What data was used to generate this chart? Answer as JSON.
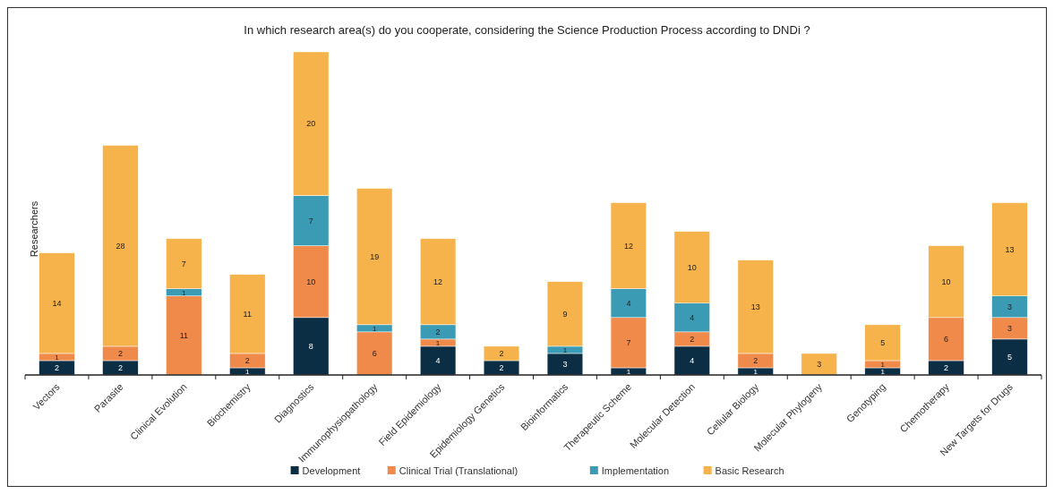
{
  "chart_data": {
    "type": "bar",
    "stacked": true,
    "title": "In which research area(s) do you cooperate, considering the Science Production Process according to DNDi ?",
    "ylabel": "Researchers",
    "categories": [
      "Vectors",
      "Parasite",
      "Clinical Evolution",
      "Biochemistry",
      "Diagnostics",
      "Immunophysiopathology",
      "Field Epidemiology",
      "Epidemiology Genetics",
      "Bioinformatics",
      "Therapeutic Scheme",
      "Molecular Detection",
      "Cellular Biology",
      "Molecular Phylogeny",
      "Genotyping",
      "Chemotherapy",
      "New Targets for Drugs"
    ],
    "series": [
      {
        "name": "Development",
        "color": "#0b2e44",
        "values": [
          2,
          2,
          0,
          1,
          8,
          0,
          4,
          2,
          3,
          1,
          4,
          1,
          0,
          1,
          2,
          5
        ],
        "value_labels": [
          "2",
          "2",
          null,
          "1",
          "8",
          null,
          "4",
          "2",
          "3",
          "1",
          "4",
          "1",
          null,
          "1",
          "2",
          "5"
        ]
      },
      {
        "name": "Clinical Trial (Translational)",
        "color": "#f08a4b",
        "values": [
          1,
          2,
          11,
          2,
          10,
          6,
          1,
          0,
          0,
          7,
          2,
          2,
          0,
          1,
          6,
          3
        ],
        "value_labels": [
          "1",
          "2",
          "11",
          "2",
          "10",
          "6",
          "1",
          null,
          null,
          "7",
          "2",
          "2",
          null,
          "1",
          "6",
          "3"
        ]
      },
      {
        "name": "Implementation",
        "color": "#3b9bb5",
        "values": [
          0,
          0,
          1,
          0,
          7,
          1,
          2,
          0,
          1,
          4,
          4,
          0,
          0,
          0,
          0,
          3
        ],
        "value_labels": [
          null,
          null,
          "1",
          null,
          "7",
          "1",
          "2",
          null,
          "1",
          "4",
          "4",
          null,
          null,
          null,
          null,
          "3"
        ]
      },
      {
        "name": "Basic Research",
        "color": "#f6b24b",
        "values": [
          14,
          28,
          7,
          11,
          20,
          19,
          12,
          2,
          9,
          12,
          10,
          13,
          3,
          5,
          10,
          13
        ],
        "value_labels": [
          "14",
          "28",
          "7",
          "11",
          "20",
          "19",
          "12",
          "2",
          "9",
          "12",
          "10",
          "13",
          "3",
          "5",
          "10",
          "13"
        ]
      }
    ],
    "legend": "bottom"
  }
}
